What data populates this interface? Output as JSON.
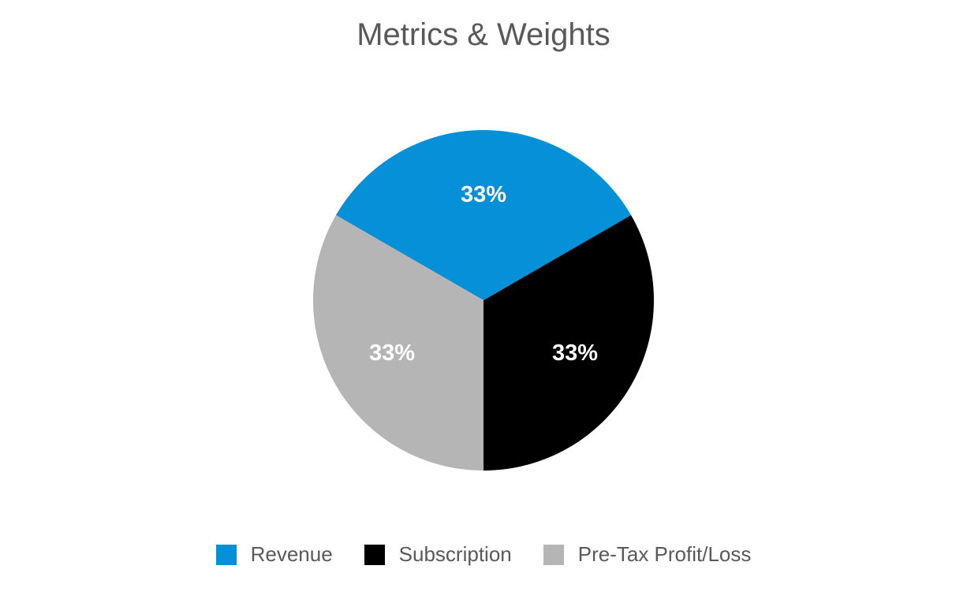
{
  "chart_data": {
    "type": "pie",
    "title": "Metrics & Weights",
    "slices": [
      {
        "label": "Revenue",
        "value": 33,
        "display": "33%",
        "color": "#0590D8"
      },
      {
        "label": "Subscription",
        "value": 33,
        "display": "33%",
        "color": "#000000"
      },
      {
        "label": "Pre-Tax Profit/Loss",
        "value": 33,
        "display": "33%",
        "color": "#B5B5B5"
      }
    ],
    "legend_position": "bottom"
  }
}
